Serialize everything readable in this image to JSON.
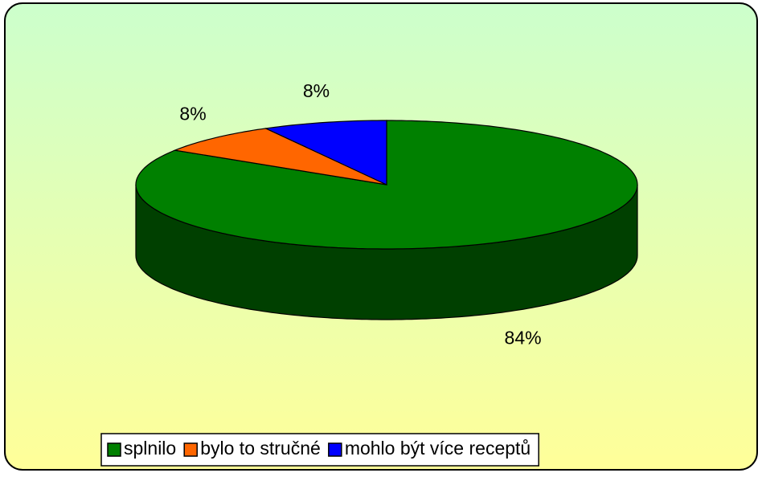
{
  "chart_data": {
    "type": "pie3d",
    "categories": [
      "splnilo",
      "bylo to stručné",
      "mohlo být více receptů"
    ],
    "values": [
      84,
      8,
      8
    ],
    "value_labels": [
      "84%",
      "8%",
      "8%"
    ],
    "colors": [
      "#008000",
      "#ff6600",
      "#0000ff"
    ],
    "legend": "bottom"
  }
}
